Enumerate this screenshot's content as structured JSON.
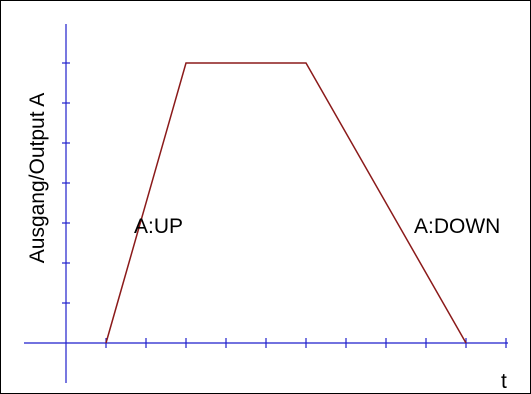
{
  "chart_data": {
    "type": "line",
    "title": "",
    "xlabel": "t",
    "ylabel": "Ausgang/Output A",
    "xlim": [
      -1,
      11
    ],
    "ylim": [
      -1,
      8
    ],
    "x_ticks": [
      1,
      2,
      3,
      4,
      5,
      6,
      7,
      8,
      9,
      10,
      11
    ],
    "y_ticks": [
      1,
      2,
      3,
      4,
      5,
      6,
      7
    ],
    "grid": false,
    "series": [
      {
        "x": [
          1,
          3,
          6,
          10
        ],
        "y": [
          0,
          7,
          7,
          0
        ],
        "color": "#8b1a1a"
      }
    ],
    "annotations": [
      {
        "text": "A:UP",
        "x": 1.7,
        "y": 3
      },
      {
        "text": "A:DOWN",
        "x": 8.7,
        "y": 3
      }
    ],
    "colors": {
      "axes": "#1f1fcc",
      "series": "#8b1a1a",
      "frame": "#000000"
    }
  }
}
